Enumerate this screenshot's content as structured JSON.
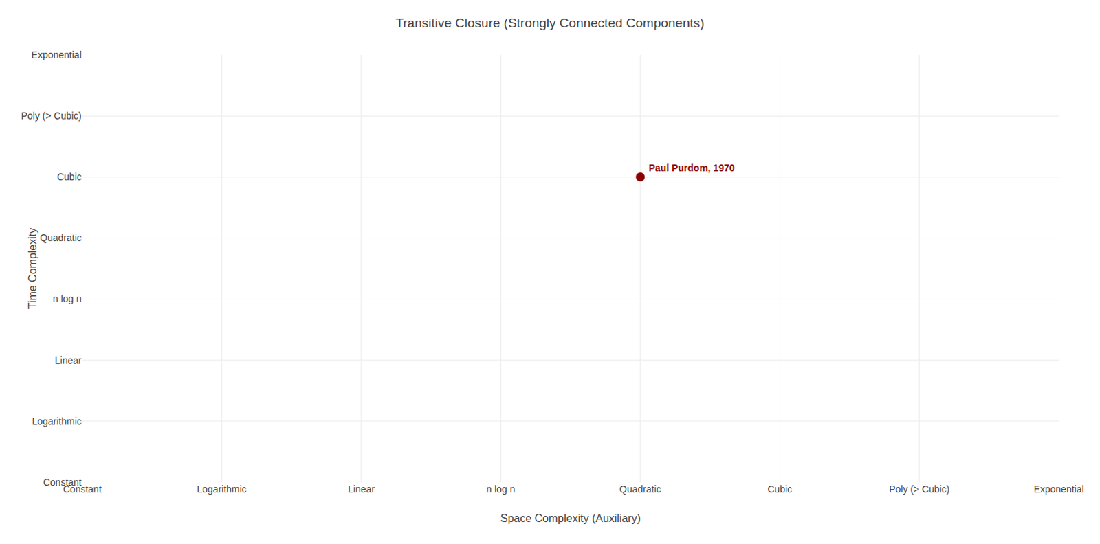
{
  "chart_data": {
    "type": "scatter",
    "title": "Transitive Closure (Strongly Connected Components)",
    "xlabel": "Space Complexity (Auxiliary)",
    "ylabel": "Time Complexity",
    "x_categories": [
      "Constant",
      "Logarithmic",
      "Linear",
      "n log n",
      "Quadratic",
      "Cubic",
      "Poly (> Cubic)",
      "Exponential"
    ],
    "y_categories": [
      "Constant",
      "Logarithmic",
      "Linear",
      "n log n",
      "Quadratic",
      "Cubic",
      "Poly (> Cubic)",
      "Exponential"
    ],
    "points": [
      {
        "x": "Quadratic",
        "y": "Cubic",
        "label": "Paul Purdom, 1970",
        "color": "#8B0000"
      }
    ],
    "grid": true
  }
}
